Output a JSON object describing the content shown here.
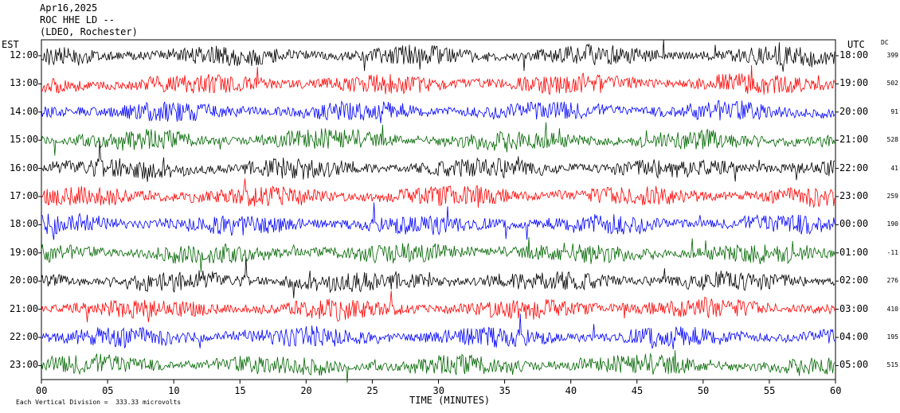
{
  "header": {
    "date": "Apr16,2025",
    "station": "ROC HHE LD --",
    "location": "(LDEO, Rochester)"
  },
  "left_axis_label": "EST",
  "right_axis_label": "UTC",
  "dc_label": "DC",
  "footer": {
    "scale_note": "Each Vertical Division =  333.33 microvolts"
  },
  "chart_data": {
    "type": "line",
    "xlabel": "TIME (MINUTES)",
    "xlim": [
      0,
      60
    ],
    "x_ticks": [
      "00",
      "05",
      "10",
      "15",
      "20",
      "25",
      "30",
      "35",
      "40",
      "45",
      "50",
      "55",
      "60"
    ],
    "rows": [
      {
        "est": "12:00",
        "utc": "18:00",
        "dc": "399",
        "color": "#000000"
      },
      {
        "est": "13:00",
        "utc": "19:00",
        "dc": "502",
        "color": "#ff0000"
      },
      {
        "est": "14:00",
        "utc": "20:00",
        "dc": "91",
        "color": "#0000ff"
      },
      {
        "est": "15:00",
        "utc": "21:00",
        "dc": "528",
        "color": "#006600"
      },
      {
        "est": "16:00",
        "utc": "22:00",
        "dc": "41",
        "color": "#000000"
      },
      {
        "est": "17:00",
        "utc": "23:00",
        "dc": "259",
        "color": "#ff0000"
      },
      {
        "est": "18:00",
        "utc": "00:00",
        "dc": "190",
        "color": "#0000ff"
      },
      {
        "est": "19:00",
        "utc": "01:00",
        "dc": "-11",
        "color": "#006600"
      },
      {
        "est": "20:00",
        "utc": "02:00",
        "dc": "276",
        "color": "#000000"
      },
      {
        "est": "21:00",
        "utc": "03:00",
        "dc": "410",
        "color": "#ff0000"
      },
      {
        "est": "22:00",
        "utc": "04:00",
        "dc": "195",
        "color": "#0000ff"
      },
      {
        "est": "23:00",
        "utc": "05:00",
        "dc": "515",
        "color": "#006600"
      }
    ]
  }
}
